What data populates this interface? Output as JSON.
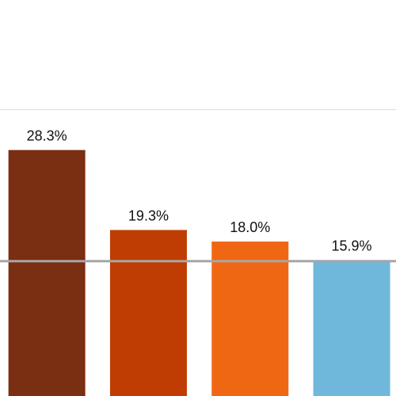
{
  "chart_data": {
    "type": "bar",
    "values": [
      28.3,
      19.3,
      18.0,
      15.9
    ],
    "value_labels": [
      "28.3%",
      "19.3%",
      "18.0%",
      "15.9%"
    ],
    "colors": [
      "#7a2e12",
      "#bf3d03",
      "#f06713",
      "#6fb8dc"
    ],
    "ylim": [
      0,
      45
    ],
    "reference_line": 15.8
  }
}
